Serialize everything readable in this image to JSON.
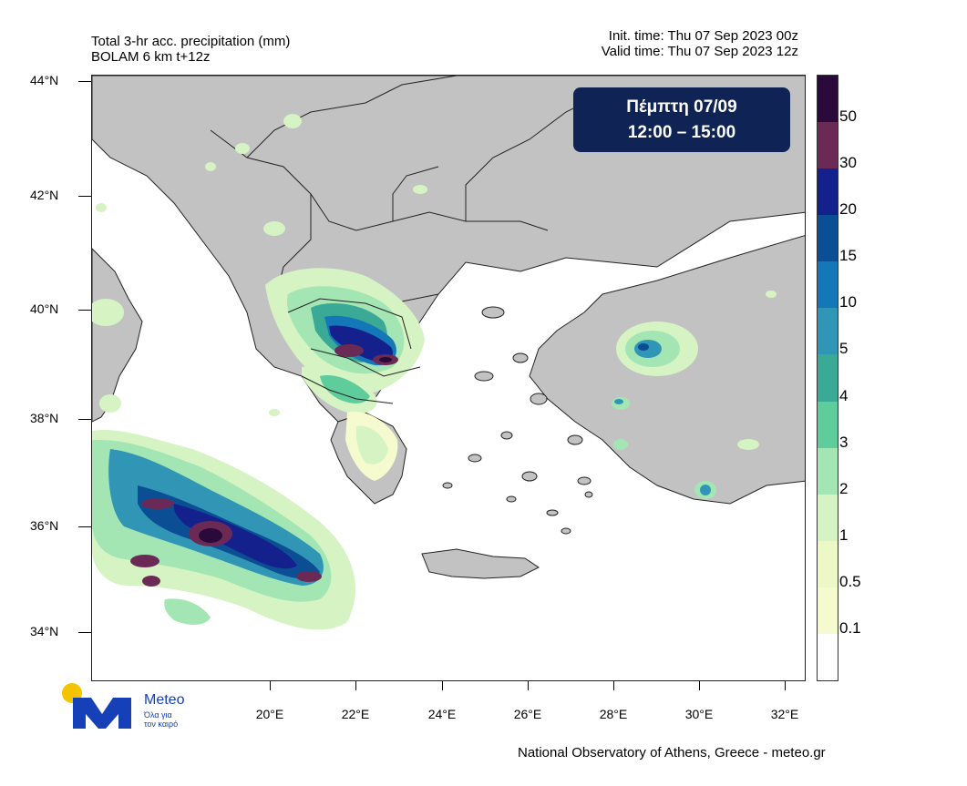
{
  "header": {
    "title_line1": "Total 3-hr acc. precipitation (mm)",
    "title_line2": "BOLAM 6 km t+12z",
    "init_time": "Init. time: Thu 07 Sep 2023 00z",
    "valid_time": "Valid time: Thu 07 Sep 2023 12z"
  },
  "banner": {
    "day": "Πέμπτη 07/09",
    "time": "12:00 – 15:00"
  },
  "axes": {
    "lat_labels": [
      "44°N",
      "42°N",
      "40°N",
      "38°N",
      "36°N",
      "34°N"
    ],
    "lon_labels": [
      "20°E",
      "22°E",
      "24°E",
      "26°E",
      "28°E",
      "30°E",
      "32°E"
    ]
  },
  "colorbar": {
    "labels": [
      "50",
      "30",
      "20",
      "15",
      "10",
      "5",
      "4",
      "3",
      "2",
      "1",
      "0.5",
      "0.1"
    ],
    "colors": [
      "#2a0a3a",
      "#6b2a55",
      "#14218c",
      "#0c4e93",
      "#1478b8",
      "#3196b5",
      "#3aa996",
      "#5fcc9c",
      "#a3e6b4",
      "#d6f3c3",
      "#ecf8c5",
      "#f6fbcf",
      "#ffffff"
    ]
  },
  "logo": {
    "name": "Meteo",
    "tagline_1": "Όλα για",
    "tagline_2": "τον καιρό"
  },
  "footer": "National Observatory of Athens, Greece - meteo.gr"
}
